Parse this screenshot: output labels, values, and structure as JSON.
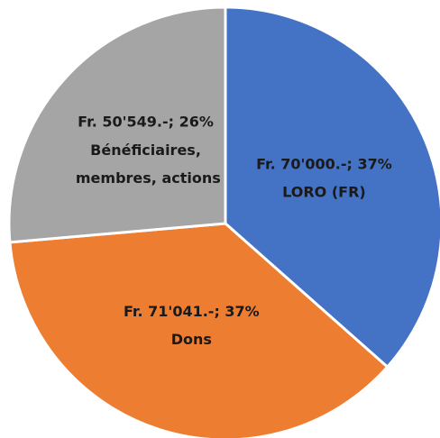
{
  "chart_data": {
    "type": "pie",
    "categories": [
      "LORO (FR)",
      "Dons",
      "Bénéficiaires, membres, actions"
    ],
    "values": [
      70000,
      71041,
      50549
    ],
    "value_labels": [
      "Fr. 70'000.-; 37%",
      "Fr. 71'041.-; 37%",
      "Fr. 50'549.-; 26%"
    ],
    "colors": [
      "#4472c4",
      "#ed7d31",
      "#a5a5a5"
    ]
  }
}
